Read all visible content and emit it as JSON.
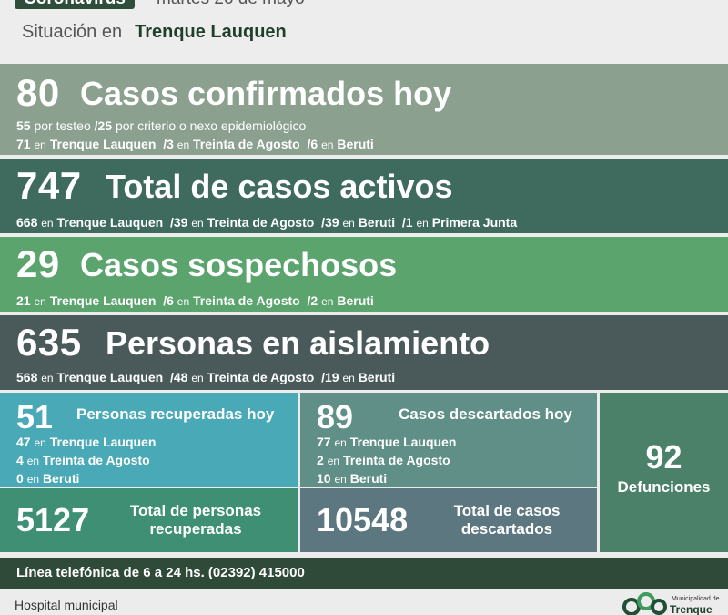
{
  "header": {
    "tag": "Coronavirus",
    "date": "martes 26 de mayo",
    "situacion_label": "Situación en",
    "city": "Trenque Lauquen"
  },
  "confirmados": {
    "number": "80",
    "title": "Casos confirmados hoy",
    "line1": [
      {
        "n": "55",
        "t": " por testeo "
      },
      {
        "n": "/25",
        "t": " por criterio o nexo epidemiológico"
      }
    ],
    "line2": [
      {
        "n": "71",
        "en": "en",
        "p": "Trenque Lauquen"
      },
      {
        "n": "/3",
        "en": "en",
        "p": "Treinta de Agosto"
      },
      {
        "n": "/6",
        "en": "en",
        "p": "Beruti"
      }
    ]
  },
  "activos": {
    "number": "747",
    "title": "Total de casos activos",
    "line": [
      {
        "n": "668",
        "en": "en",
        "p": "Trenque Lauquen"
      },
      {
        "n": "/39",
        "en": "en",
        "p": "Treinta de Agosto"
      },
      {
        "n": "/39",
        "en": "en",
        "p": "Beruti"
      },
      {
        "n": "/1",
        "en": "en",
        "p": "Primera Junta"
      }
    ]
  },
  "sospechosos": {
    "number": "29",
    "title": "Casos sospechosos",
    "line": [
      {
        "n": "21",
        "en": "en",
        "p": "Trenque Lauquen"
      },
      {
        "n": "/6",
        "en": "en",
        "p": "Treinta de Agosto"
      },
      {
        "n": "/2",
        "en": "en",
        "p": "Beruti"
      }
    ]
  },
  "aislamiento": {
    "number": "635",
    "title": "Personas en aislamiento",
    "line": [
      {
        "n": "568",
        "en": "en",
        "p": "Trenque Lauquen"
      },
      {
        "n": "/48",
        "en": "en",
        "p": "Treinta de Agosto"
      },
      {
        "n": "/19",
        "en": "en",
        "p": "Beruti"
      }
    ]
  },
  "recuperadas": {
    "number": "51",
    "title": "Personas recuperadas hoy",
    "rows": [
      {
        "n": "47",
        "en": "en",
        "p": "Trenque Lauquen"
      },
      {
        "n": "4",
        "en": "en",
        "p": "Treinta de Agosto"
      },
      {
        "n": "0",
        "en": "en",
        "p": "Beruti"
      }
    ],
    "total_number": "5127",
    "total_title_1": "Total de personas",
    "total_title_2": "recuperadas"
  },
  "descartados": {
    "number": "89",
    "title": "Casos descartados hoy",
    "rows": [
      {
        "n": "77",
        "en": "en",
        "p": "Trenque Lauquen"
      },
      {
        "n": "2",
        "en": "en",
        "p": "Treinta de Agosto"
      },
      {
        "n": "10",
        "en": "en",
        "p": "Beruti"
      }
    ],
    "total_number": "10548",
    "total_title_1": "Total de casos",
    "total_title_2": "descartados"
  },
  "defunciones": {
    "number": "92",
    "label": "Defunciones"
  },
  "phone": "Línea telefónica de 6 a 24 hs. (02392) 415000",
  "footer": {
    "hospital": "Hospital municipal",
    "logo_small": "Municipalidad de",
    "logo_city": "Trenque"
  }
}
